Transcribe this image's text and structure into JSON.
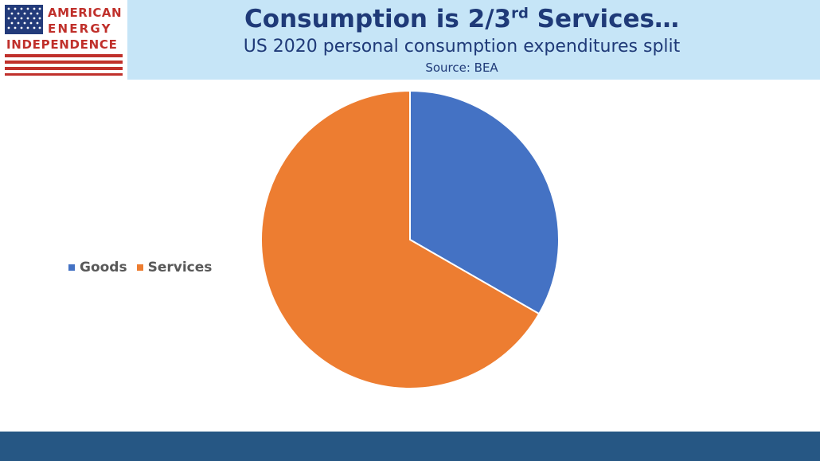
{
  "logo": {
    "line1": "AMERICAN",
    "line2": "ENERGY",
    "line3": "INDEPENDENCE",
    "colors": {
      "red": "#c0302b",
      "blue": "#233b7a"
    }
  },
  "header": {
    "title_main": "Consumption is 2/3",
    "title_sup": "rd",
    "title_tail": " Services…",
    "subtitle": "US 2020 personal consumption expenditures split",
    "source": "Source: BEA"
  },
  "colors": {
    "header_bg": "#c6e5f7",
    "title": "#1f3a78",
    "footer": "#265784",
    "goods": "#4472c4",
    "services": "#ed7d31"
  },
  "chart_data": {
    "type": "pie",
    "title": "",
    "categories": [
      "Goods",
      "Services"
    ],
    "values": [
      33.3,
      66.7
    ],
    "colors": [
      "#4472c4",
      "#ed7d31"
    ],
    "start_angle": "12 o'clock",
    "direction": "clockwise",
    "legend_position": "left"
  }
}
